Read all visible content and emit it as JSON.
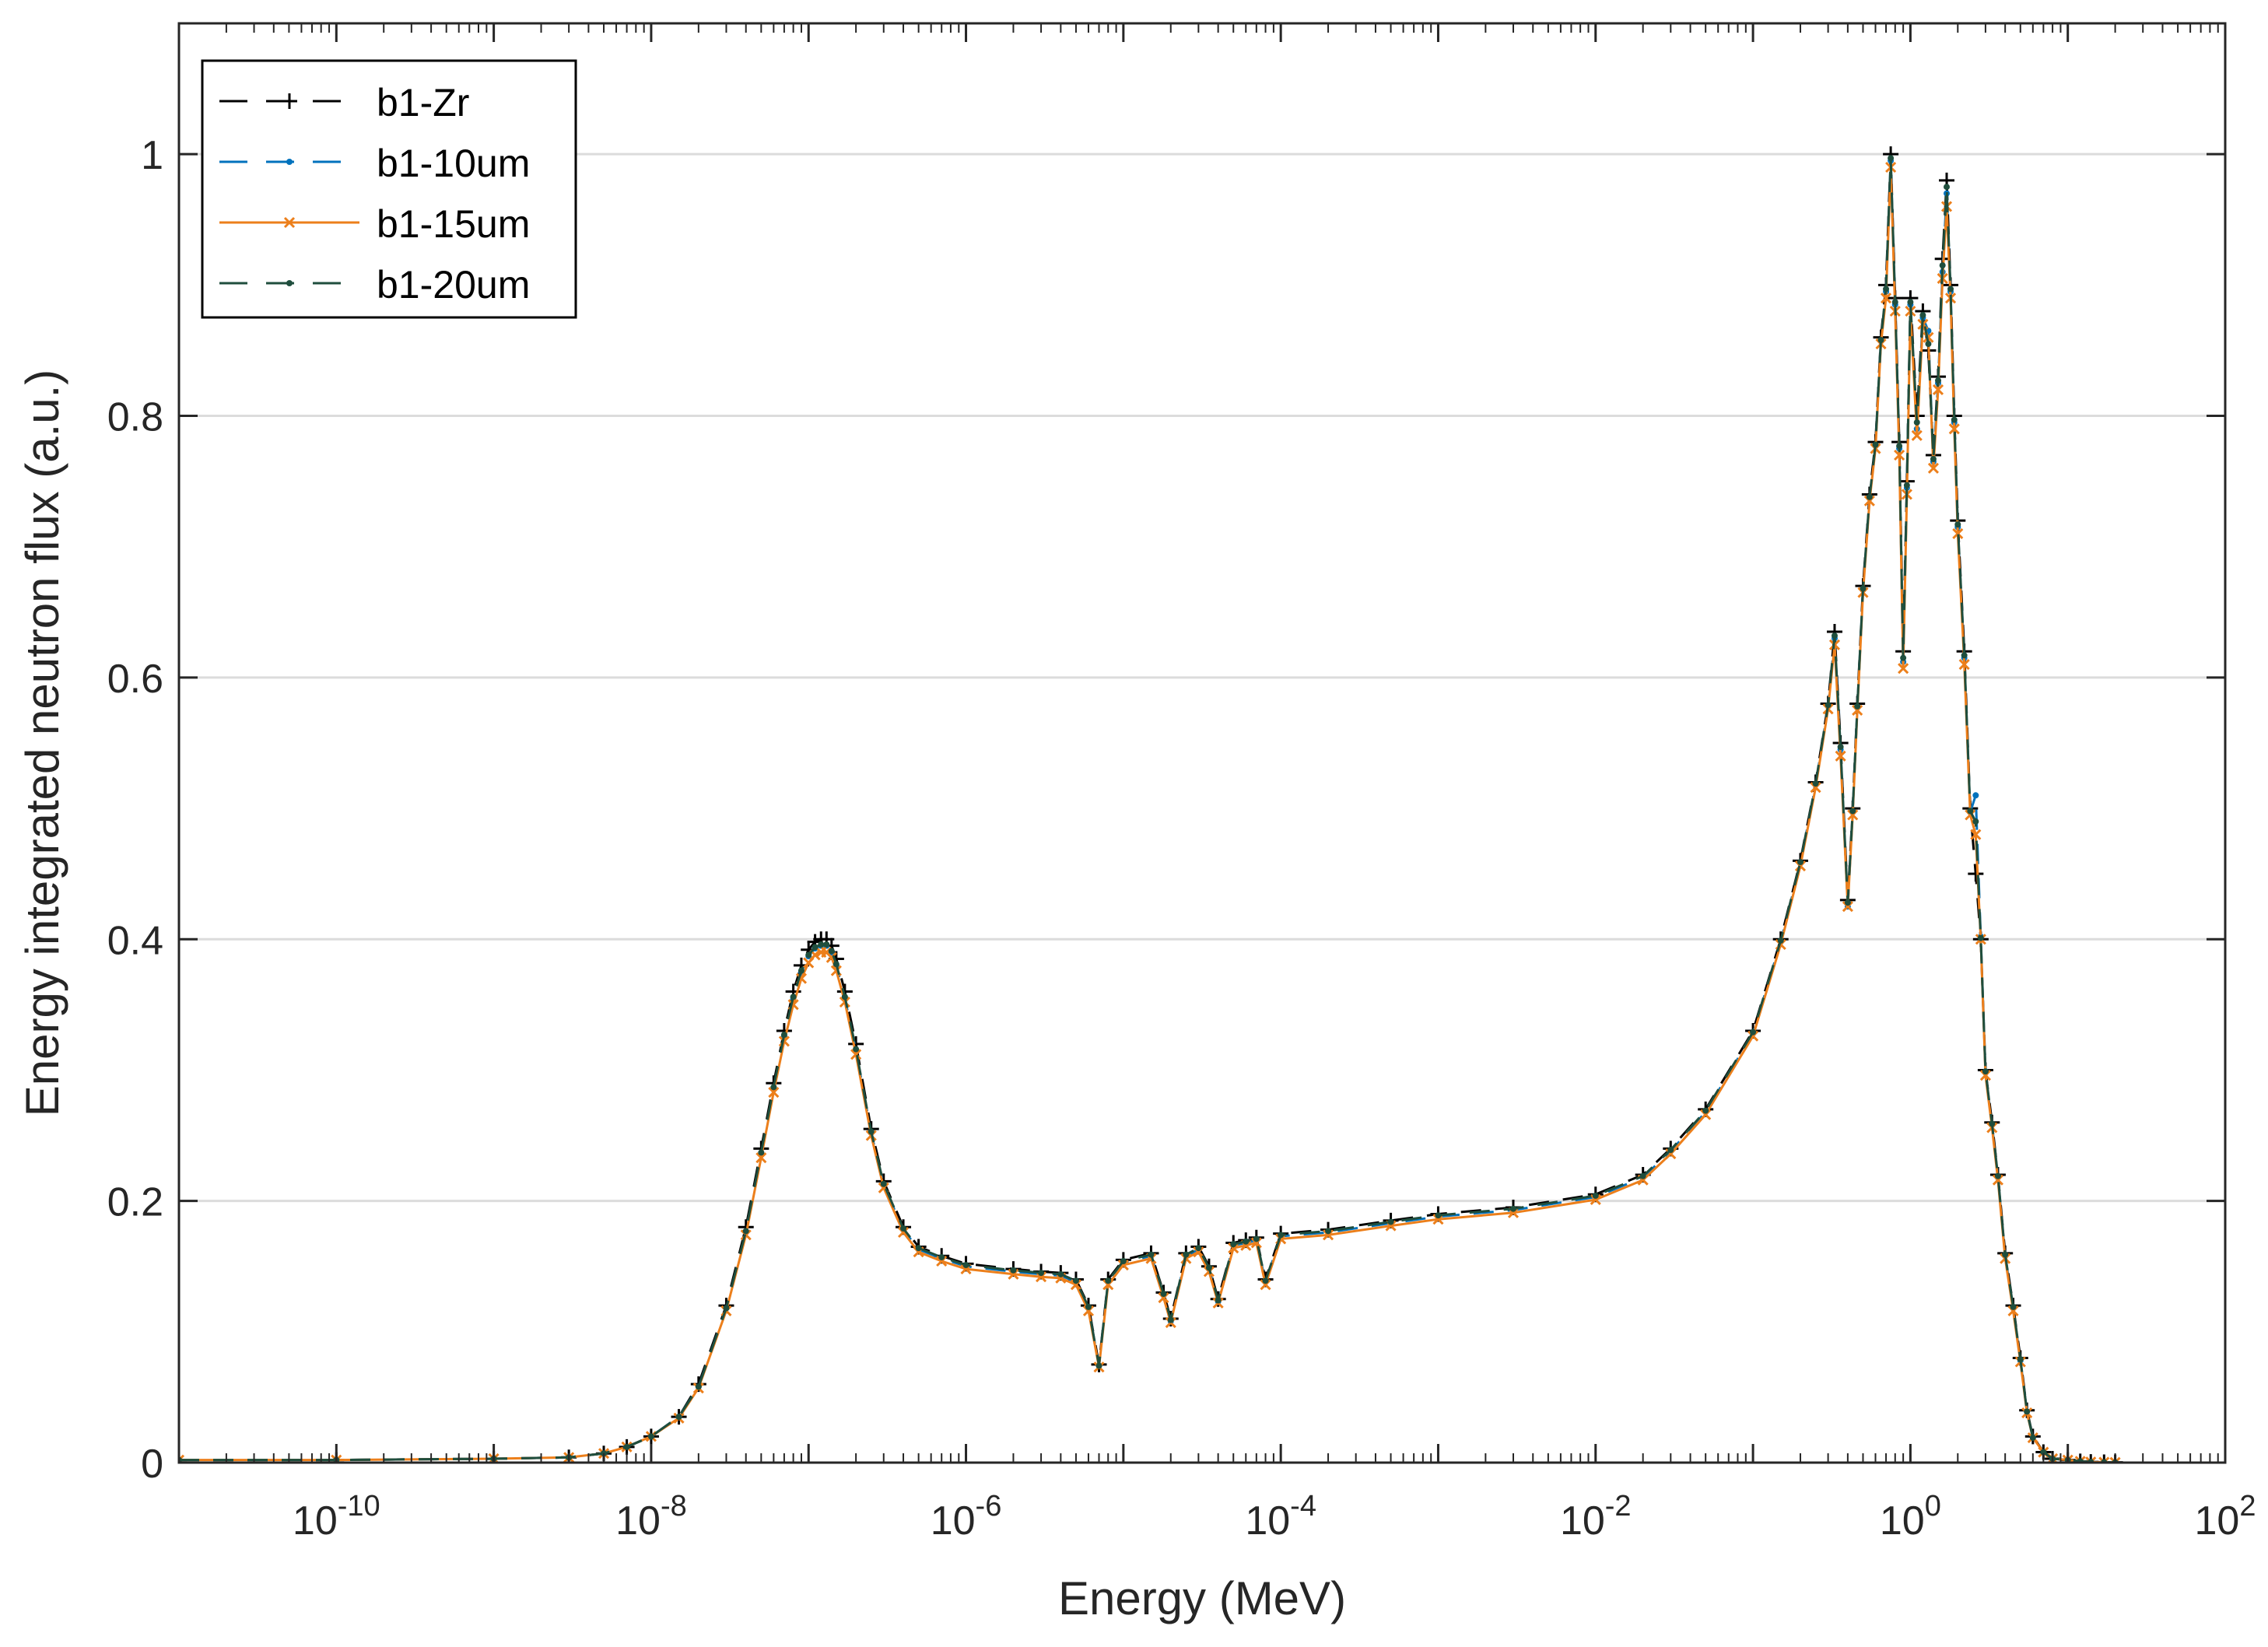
{
  "chart_data": {
    "type": "line",
    "title": "",
    "xlabel": "Energy (MeV)",
    "ylabel": "Energy integrated neutron flux (a.u.)",
    "xscale": "log",
    "xlim_exponents": [
      -11,
      2
    ],
    "ylim": [
      0,
      1.1
    ],
    "grid": "horizontal",
    "legend_position": "top-left",
    "x_ticks": [
      {
        "base": "10",
        "exp": "-10",
        "value": 1e-10
      },
      {
        "base": "10",
        "exp": "-8",
        "value": 1e-08
      },
      {
        "base": "10",
        "exp": "-6",
        "value": 1e-06
      },
      {
        "base": "10",
        "exp": "-4",
        "value": 0.0001
      },
      {
        "base": "10",
        "exp": "-2",
        "value": 0.01
      },
      {
        "base": "10",
        "exp": "0",
        "value": 1
      },
      {
        "base": "10",
        "exp": "2",
        "value": 100
      }
    ],
    "y_ticks": [
      "0",
      "0.2",
      "0.4",
      "0.6",
      "0.8",
      "1"
    ],
    "y_tick_values": [
      0,
      0.2,
      0.4,
      0.6,
      0.8,
      1.0
    ],
    "x": [
      1e-11,
      1e-10,
      1e-09,
      3e-09,
      5e-09,
      7e-09,
      1e-08,
      1.5e-08,
      2e-08,
      3e-08,
      4e-08,
      5e-08,
      6e-08,
      7e-08,
      8e-08,
      9e-08,
      1e-07,
      1.1e-07,
      1.2e-07,
      1.3e-07,
      1.4e-07,
      1.5e-07,
      1.7e-07,
      2e-07,
      2.5e-07,
      3e-07,
      4e-07,
      5e-07,
      7e-07,
      1e-06,
      2e-06,
      3e-06,
      4e-06,
      5e-06,
      6e-06,
      7e-06,
      8e-06,
      1e-05,
      1.5e-05,
      1.8e-05,
      2e-05,
      2.5e-05,
      3e-05,
      3.5e-05,
      4e-05,
      5e-05,
      6e-05,
      7e-05,
      8e-05,
      0.0001,
      0.0002,
      0.0005,
      0.001,
      0.003,
      0.01,
      0.02,
      0.03,
      0.05,
      0.1,
      0.15,
      0.2,
      0.25,
      0.3,
      0.33,
      0.36,
      0.4,
      0.43,
      0.46,
      0.5,
      0.55,
      0.6,
      0.65,
      0.7,
      0.75,
      0.8,
      0.85,
      0.9,
      0.95,
      1.0,
      1.1,
      1.2,
      1.3,
      1.4,
      1.5,
      1.6,
      1.7,
      1.8,
      1.9,
      2.0,
      2.2,
      2.4,
      2.6,
      2.8,
      3.0,
      3.3,
      3.6,
      4.0,
      4.5,
      5.0,
      5.5,
      6.0,
      7.0,
      8.0,
      10.0,
      12.0,
      14.0,
      17.0,
      20.0
    ],
    "series": [
      {
        "name": "b1-Zr",
        "color": "#000000",
        "style": "dashed",
        "marker": "plus",
        "values": [
          0.002,
          0.002,
          0.003,
          0.004,
          0.007,
          0.012,
          0.02,
          0.035,
          0.06,
          0.12,
          0.18,
          0.24,
          0.29,
          0.33,
          0.36,
          0.38,
          0.392,
          0.398,
          0.4,
          0.4,
          0.395,
          0.385,
          0.36,
          0.32,
          0.255,
          0.215,
          0.18,
          0.165,
          0.158,
          0.152,
          0.148,
          0.146,
          0.145,
          0.14,
          0.12,
          0.075,
          0.14,
          0.155,
          0.16,
          0.13,
          0.11,
          0.16,
          0.165,
          0.15,
          0.125,
          0.168,
          0.17,
          0.172,
          0.14,
          0.175,
          0.178,
          0.185,
          0.19,
          0.195,
          0.205,
          0.22,
          0.24,
          0.27,
          0.33,
          0.4,
          0.46,
          0.52,
          0.58,
          0.635,
          0.55,
          0.43,
          0.5,
          0.58,
          0.67,
          0.74,
          0.78,
          0.86,
          0.9,
          1.0,
          0.89,
          0.78,
          0.62,
          0.75,
          0.89,
          0.8,
          0.88,
          0.85,
          0.77,
          0.83,
          0.92,
          0.98,
          0.9,
          0.8,
          0.72,
          0.62,
          0.5,
          0.45,
          0.4,
          0.3,
          0.26,
          0.22,
          0.16,
          0.12,
          0.08,
          0.04,
          0.02,
          0.008,
          0.003,
          0.002,
          0.001,
          0.0005,
          0.0003,
          0.0002
        ]
      },
      {
        "name": "b1-10um",
        "color": "#0072BD",
        "style": "dashed",
        "marker": "dot",
        "values": [
          0.002,
          0.002,
          0.003,
          0.004,
          0.007,
          0.012,
          0.02,
          0.035,
          0.058,
          0.118,
          0.176,
          0.236,
          0.286,
          0.326,
          0.355,
          0.375,
          0.387,
          0.393,
          0.395,
          0.395,
          0.39,
          0.38,
          0.355,
          0.315,
          0.252,
          0.212,
          0.178,
          0.163,
          0.156,
          0.15,
          0.146,
          0.144,
          0.143,
          0.138,
          0.118,
          0.074,
          0.138,
          0.153,
          0.158,
          0.128,
          0.108,
          0.158,
          0.163,
          0.148,
          0.123,
          0.166,
          0.168,
          0.17,
          0.138,
          0.173,
          0.176,
          0.183,
          0.188,
          0.193,
          0.203,
          0.218,
          0.238,
          0.268,
          0.328,
          0.398,
          0.458,
          0.518,
          0.578,
          0.63,
          0.545,
          0.425,
          0.497,
          0.577,
          0.667,
          0.737,
          0.777,
          0.857,
          0.895,
          0.995,
          0.885,
          0.775,
          0.612,
          0.745,
          0.885,
          0.79,
          0.875,
          0.865,
          0.765,
          0.825,
          0.91,
          0.97,
          0.895,
          0.795,
          0.715,
          0.615,
          0.497,
          0.51,
          0.402,
          0.298,
          0.258,
          0.218,
          0.158,
          0.118,
          0.078,
          0.039,
          0.019,
          0.008,
          0.003,
          0.002,
          0.001,
          0.0005,
          0.0003,
          0.0002
        ]
      },
      {
        "name": "b1-15um",
        "color": "#EC7F1B",
        "style": "solid",
        "marker": "x",
        "values": [
          0.002,
          0.002,
          0.003,
          0.004,
          0.007,
          0.012,
          0.02,
          0.034,
          0.057,
          0.116,
          0.174,
          0.233,
          0.283,
          0.322,
          0.35,
          0.37,
          0.382,
          0.388,
          0.39,
          0.39,
          0.386,
          0.376,
          0.352,
          0.312,
          0.25,
          0.21,
          0.176,
          0.161,
          0.154,
          0.148,
          0.144,
          0.142,
          0.141,
          0.136,
          0.116,
          0.073,
          0.136,
          0.151,
          0.156,
          0.126,
          0.107,
          0.156,
          0.161,
          0.146,
          0.122,
          0.164,
          0.166,
          0.168,
          0.136,
          0.171,
          0.174,
          0.181,
          0.186,
          0.191,
          0.201,
          0.216,
          0.236,
          0.266,
          0.326,
          0.396,
          0.456,
          0.516,
          0.576,
          0.625,
          0.54,
          0.425,
          0.495,
          0.575,
          0.665,
          0.735,
          0.775,
          0.855,
          0.89,
          0.99,
          0.88,
          0.77,
          0.607,
          0.74,
          0.88,
          0.785,
          0.87,
          0.86,
          0.76,
          0.82,
          0.905,
          0.96,
          0.89,
          0.79,
          0.71,
          0.61,
          0.495,
          0.48,
          0.4,
          0.296,
          0.256,
          0.216,
          0.156,
          0.116,
          0.077,
          0.038,
          0.019,
          0.008,
          0.003,
          0.002,
          0.001,
          0.0005,
          0.0003,
          0.0002
        ]
      },
      {
        "name": "b1-20um",
        "color": "#1F4E3D",
        "style": "dashed",
        "marker": "dot",
        "values": [
          0.002,
          0.002,
          0.003,
          0.004,
          0.007,
          0.012,
          0.02,
          0.035,
          0.058,
          0.118,
          0.177,
          0.237,
          0.287,
          0.327,
          0.356,
          0.376,
          0.388,
          0.394,
          0.396,
          0.396,
          0.391,
          0.381,
          0.356,
          0.316,
          0.253,
          0.213,
          0.179,
          0.164,
          0.157,
          0.151,
          0.147,
          0.145,
          0.144,
          0.139,
          0.119,
          0.074,
          0.139,
          0.154,
          0.159,
          0.129,
          0.109,
          0.159,
          0.164,
          0.149,
          0.124,
          0.167,
          0.169,
          0.171,
          0.139,
          0.174,
          0.177,
          0.184,
          0.189,
          0.194,
          0.204,
          0.219,
          0.239,
          0.269,
          0.329,
          0.399,
          0.459,
          0.519,
          0.579,
          0.632,
          0.547,
          0.428,
          0.498,
          0.578,
          0.668,
          0.738,
          0.778,
          0.858,
          0.897,
          0.997,
          0.887,
          0.777,
          0.615,
          0.747,
          0.887,
          0.795,
          0.877,
          0.855,
          0.767,
          0.827,
          0.915,
          0.975,
          0.897,
          0.797,
          0.717,
          0.617,
          0.498,
          0.49,
          0.401,
          0.299,
          0.259,
          0.219,
          0.159,
          0.119,
          0.079,
          0.039,
          0.019,
          0.008,
          0.003,
          0.002,
          0.001,
          0.0005,
          0.0003,
          0.0002
        ]
      }
    ]
  }
}
